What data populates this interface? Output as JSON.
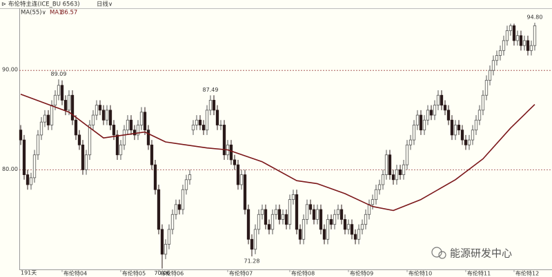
{
  "header": {
    "symbol": "布伦特主连(ICE_BU 6563)",
    "period": "日线∨",
    "indicator": "MA(55)∨"
  },
  "watermark": "能源研发中心",
  "chart_data": {
    "type": "candlestick",
    "up_color": "#555555",
    "down_color": "#2a1a1a",
    "open": [
      84.0,
      83.0,
      79.5,
      78.5,
      79.2,
      81.5,
      83.5,
      84.8,
      85.5,
      84.5,
      86.5,
      87.5,
      88.5,
      87.0,
      86.0,
      87.5,
      85.0,
      83.5,
      82.5,
      80.0,
      81.5,
      84.5,
      85.5,
      86.5,
      86.0,
      85.0,
      86.0,
      84.5,
      83.5,
      81.5,
      82.5,
      84.0,
      85.0,
      84.0,
      83.5,
      84.5,
      85.8,
      84.0,
      82.5,
      80.5,
      78.0,
      74.0,
      71.5,
      72.5,
      74.0,
      75.5,
      76.5,
      76.0,
      78.0,
      79.0,
      84.0,
      84.5,
      85.0,
      84.5,
      84.0,
      86.0,
      87.0,
      86.0,
      84.5,
      84.5,
      81.5,
      82.5,
      81.0,
      80.5,
      78.5,
      79.5,
      76.0,
      73.0,
      72.0,
      74.0,
      75.5,
      76.0,
      74.5,
      74.0,
      75.5,
      76.0,
      75.0,
      75.5,
      74.5,
      77.0,
      77.5,
      74.0,
      73.0,
      75.0,
      76.5,
      76.0,
      75.0,
      76.0,
      74.0,
      73.0,
      75.0,
      74.5,
      75.5,
      76.0,
      75.0,
      74.0,
      74.5,
      73.5,
      73.0,
      74.0,
      74.5,
      75.5,
      76.5,
      77.0,
      78.0,
      78.5,
      79.5,
      81.5,
      79.5,
      79.0,
      80.0,
      79.5,
      80.5,
      82.5,
      83.0,
      84.5,
      85.5,
      84.0,
      85.0,
      86.0,
      85.5,
      86.5,
      87.5,
      86.5,
      86.0,
      85.0,
      83.5,
      84.5,
      84.0,
      83.0,
      82.5,
      83.0,
      84.0,
      85.0,
      86.0,
      87.5,
      89.0,
      90.0,
      91.0,
      91.5,
      92.0,
      93.0,
      94.0,
      94.5,
      93.0,
      93.5,
      92.5,
      93.0,
      92.0,
      92.5
    ],
    "high": [
      84.5,
      83.5,
      80.0,
      79.7,
      82.0,
      84.0,
      85.3,
      86.0,
      86.0,
      87.0,
      88.0,
      89.09,
      89.0,
      87.5,
      88.0,
      88.0,
      85.5,
      84.0,
      83.0,
      82.0,
      85.0,
      86.0,
      87.0,
      87.0,
      86.5,
      86.5,
      86.5,
      85.0,
      84.0,
      83.0,
      84.5,
      85.5,
      85.5,
      84.5,
      85.0,
      86.3,
      86.3,
      84.5,
      83.0,
      81.0,
      78.5,
      74.5,
      73.0,
      74.5,
      76.0,
      77.0,
      77.0,
      78.5,
      79.5,
      80.0,
      85.0,
      85.5,
      85.5,
      85.0,
      86.5,
      87.49,
      87.5,
      86.5,
      85.0,
      85.0,
      83.0,
      83.0,
      81.5,
      81.0,
      80.0,
      80.0,
      76.5,
      73.5,
      74.5,
      76.0,
      76.5,
      76.5,
      75.0,
      76.0,
      76.5,
      76.5,
      76.0,
      76.0,
      77.5,
      78.0,
      78.0,
      74.5,
      75.5,
      77.0,
      77.0,
      76.5,
      76.5,
      76.5,
      74.5,
      75.5,
      75.5,
      76.0,
      76.5,
      76.5,
      75.5,
      75.0,
      75.0,
      74.0,
      74.5,
      75.0,
      76.0,
      77.0,
      77.5,
      78.5,
      79.0,
      80.0,
      82.0,
      82.0,
      80.0,
      80.5,
      80.5,
      81.0,
      83.0,
      83.5,
      85.0,
      86.0,
      86.0,
      85.5,
      86.5,
      86.5,
      87.0,
      88.0,
      88.0,
      87.0,
      86.5,
      85.5,
      85.0,
      85.0,
      84.5,
      83.5,
      83.5,
      84.5,
      85.5,
      86.5,
      88.0,
      89.5,
      90.5,
      91.5,
      92.0,
      92.5,
      93.5,
      94.5,
      94.7,
      94.7,
      94.0,
      94.0,
      93.5,
      93.5,
      93.0,
      94.8
    ],
    "low": [
      82.5,
      79.0,
      78.0,
      78.0,
      78.7,
      81.0,
      83.0,
      84.3,
      84.0,
      84.0,
      86.0,
      87.0,
      86.5,
      85.5,
      85.5,
      84.5,
      83.0,
      82.0,
      79.5,
      79.5,
      81.0,
      84.0,
      85.0,
      85.5,
      84.5,
      84.5,
      84.0,
      83.0,
      81.0,
      81.0,
      82.0,
      83.5,
      83.5,
      83.0,
      83.0,
      84.0,
      83.5,
      82.0,
      80.0,
      77.5,
      73.5,
      70.06,
      71.0,
      72.0,
      73.5,
      75.0,
      75.5,
      75.5,
      77.5,
      78.5,
      83.5,
      84.0,
      84.0,
      83.5,
      83.5,
      85.5,
      85.5,
      84.0,
      84.0,
      81.0,
      81.0,
      80.5,
      80.0,
      78.0,
      78.0,
      75.5,
      72.5,
      71.28,
      71.5,
      73.5,
      75.0,
      74.0,
      73.5,
      73.5,
      75.0,
      74.5,
      74.5,
      74.0,
      74.0,
      76.5,
      73.5,
      72.5,
      72.5,
      74.5,
      75.5,
      74.5,
      74.5,
      73.5,
      72.5,
      72.5,
      74.0,
      74.0,
      75.0,
      74.5,
      73.5,
      73.5,
      73.0,
      72.5,
      72.5,
      73.5,
      74.0,
      75.0,
      76.0,
      76.5,
      77.5,
      78.0,
      79.0,
      79.0,
      78.5,
      78.5,
      79.0,
      79.0,
      80.0,
      82.0,
      82.5,
      84.0,
      83.5,
      83.5,
      84.5,
      85.0,
      85.0,
      86.0,
      86.0,
      85.5,
      84.5,
      83.0,
      83.0,
      83.5,
      82.5,
      82.0,
      82.0,
      82.5,
      83.5,
      84.5,
      85.5,
      87.0,
      88.5,
      89.5,
      90.5,
      91.0,
      91.5,
      92.5,
      93.5,
      92.5,
      92.5,
      92.0,
      92.0,
      91.5,
      91.5,
      92.0
    ],
    "close": [
      83.0,
      79.5,
      78.5,
      79.2,
      81.5,
      83.5,
      84.8,
      85.5,
      84.5,
      86.5,
      87.5,
      88.5,
      87.0,
      86.0,
      87.5,
      85.0,
      83.5,
      82.5,
      80.0,
      81.5,
      84.5,
      85.5,
      86.5,
      86.0,
      85.0,
      86.0,
      84.5,
      83.5,
      81.5,
      82.5,
      84.0,
      85.0,
      84.0,
      83.5,
      84.5,
      85.8,
      84.0,
      82.5,
      80.5,
      78.0,
      74.0,
      71.5,
      72.5,
      74.0,
      75.5,
      76.5,
      76.0,
      78.0,
      79.0,
      79.5,
      84.5,
      85.0,
      84.5,
      84.0,
      86.0,
      87.0,
      86.0,
      84.5,
      84.5,
      81.5,
      82.5,
      81.0,
      80.5,
      78.5,
      79.5,
      76.0,
      73.0,
      72.0,
      74.0,
      75.5,
      76.0,
      74.5,
      74.0,
      75.5,
      76.0,
      75.0,
      75.5,
      74.5,
      77.0,
      77.5,
      74.0,
      73.0,
      75.0,
      76.5,
      76.0,
      75.0,
      76.0,
      74.0,
      73.0,
      75.0,
      74.5,
      75.5,
      76.0,
      75.0,
      74.0,
      74.5,
      73.5,
      73.0,
      74.0,
      74.5,
      75.5,
      76.5,
      77.0,
      78.0,
      78.5,
      79.5,
      81.5,
      79.5,
      79.0,
      80.0,
      79.5,
      80.5,
      82.5,
      83.0,
      84.5,
      85.5,
      84.0,
      85.0,
      86.0,
      85.5,
      86.5,
      87.5,
      86.5,
      86.0,
      85.0,
      83.5,
      84.5,
      84.0,
      83.0,
      82.5,
      83.0,
      84.0,
      85.0,
      86.0,
      87.5,
      89.0,
      90.0,
      91.0,
      91.5,
      92.0,
      93.0,
      94.0,
      94.5,
      93.0,
      93.5,
      92.5,
      93.0,
      92.0,
      92.5,
      94.5
    ],
    "ma": {
      "name": "MA1",
      "color": "#7a1518",
      "x": [
        0,
        14,
        24,
        36,
        42,
        54,
        60,
        70,
        80,
        86,
        94,
        102,
        108,
        116,
        126,
        134,
        142,
        149
      ],
      "values": [
        87.6,
        85.8,
        83.2,
        83.8,
        82.8,
        82.2,
        82.0,
        80.8,
        78.9,
        78.6,
        77.6,
        76.3,
        75.9,
        77.0,
        79.0,
        81.1,
        84.2,
        86.57
      ]
    },
    "xlim": [
      -0.4,
      151
    ],
    "ylim": [
      69.9,
      95.7
    ],
    "yticks": [
      {
        "value": 80,
        "label": "80.00"
      },
      {
        "value": 90,
        "label": "90.00"
      }
    ],
    "xticks": [
      {
        "value": 12,
        "label": "布伦特04"
      },
      {
        "value": 29,
        "label": "布伦特05"
      },
      {
        "value": 40,
        "label": "布伦特06"
      },
      {
        "value": 60,
        "label": "布伦特07"
      },
      {
        "value": 78,
        "label": "布伦特08"
      },
      {
        "value": 95,
        "label": "布伦特09"
      },
      {
        "value": 112,
        "label": "布伦特10"
      },
      {
        "value": 129,
        "label": "布伦特11"
      },
      {
        "value": 143,
        "label": "布伦特12"
      }
    ],
    "period_count": "191天",
    "grid": true,
    "annotations": [
      {
        "value": 89.09,
        "label": "89.09"
      },
      {
        "value": 87.49,
        "label": "87.49"
      },
      {
        "value": 71.28,
        "label": "71.28"
      },
      {
        "value": 70.06,
        "label": "70.06"
      },
      {
        "value": 94.8,
        "label": "94.80"
      }
    ]
  }
}
